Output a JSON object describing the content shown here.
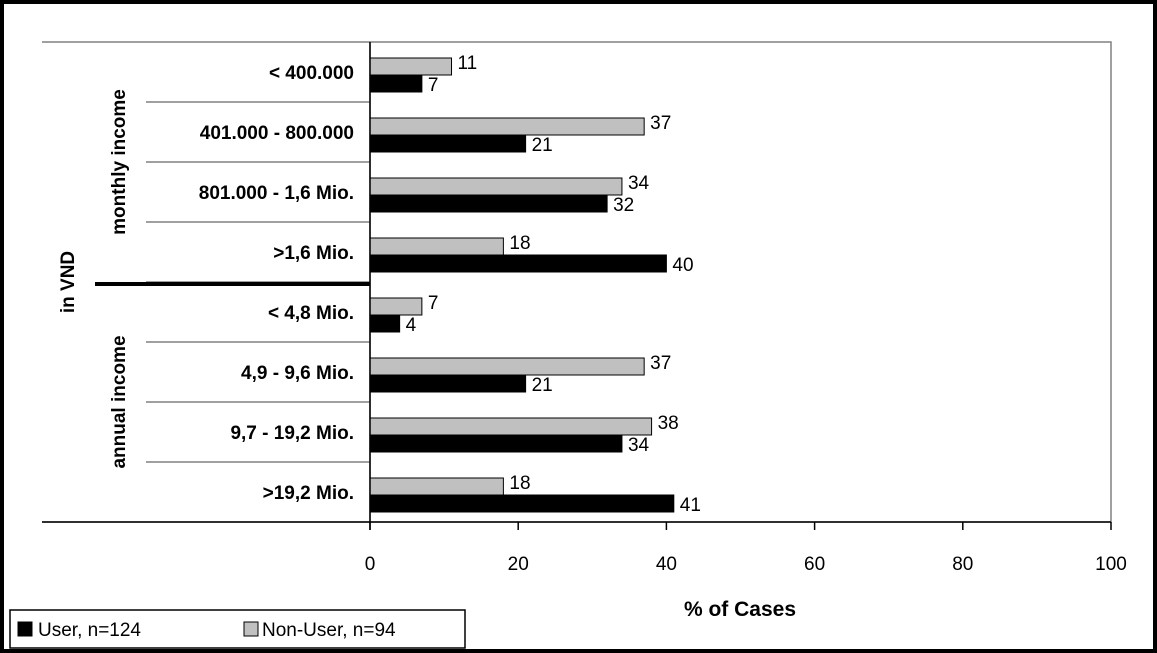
{
  "chart_data": {
    "type": "bar",
    "orientation": "horizontal",
    "categories": [
      "< 400.000",
      "401.000 - 800.000",
      "801.000 - 1,6 Mio.",
      ">1,6 Mio.",
      "< 4,8 Mio.",
      "4,9 - 9,6 Mio.",
      "9,7 - 19,2 Mio.",
      ">19,2 Mio."
    ],
    "groups": [
      {
        "label": "monthly income",
        "categories": [
          0,
          1,
          2,
          3
        ]
      },
      {
        "label": "annual income",
        "categories": [
          4,
          5,
          6,
          7
        ]
      }
    ],
    "outer_label": "in VND",
    "series": [
      {
        "name": "Non-User, n=94",
        "color": "#c0c0c0",
        "values": [
          11,
          37,
          34,
          18,
          7,
          37,
          38,
          18
        ]
      },
      {
        "name": "User, n=124",
        "color": "#000000",
        "values": [
          7,
          21,
          32,
          40,
          4,
          21,
          34,
          41
        ]
      }
    ],
    "xlabel": "% of Cases",
    "xlim": [
      0,
      100
    ],
    "xticks": [
      "0",
      "20",
      "40",
      "60",
      "80",
      "100"
    ],
    "grid": false,
    "legend_placement": "bottom-left",
    "legend_order": [
      1,
      0
    ]
  }
}
